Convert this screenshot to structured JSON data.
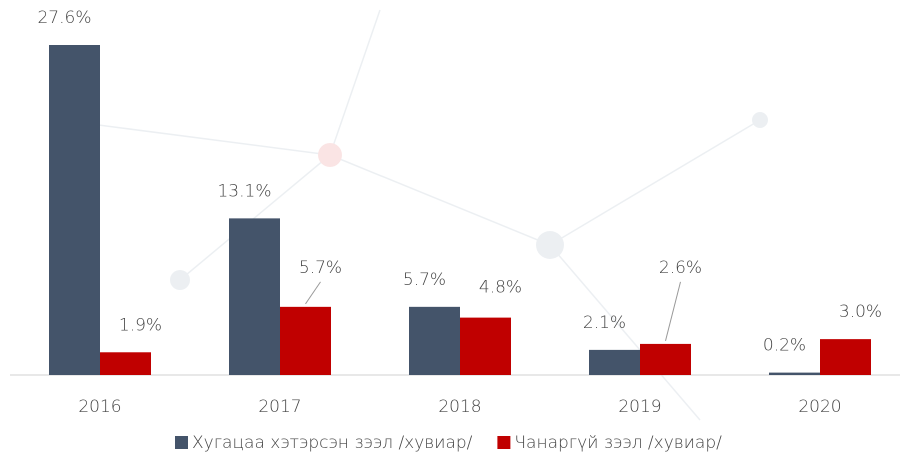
{
  "chart_data": {
    "type": "bar",
    "categories": [
      "2016",
      "2017",
      "2018",
      "2019",
      "2020"
    ],
    "series": [
      {
        "name": "Хугацаа хэтэрсэн зээл /хувиар/",
        "color": "#44546a",
        "values": [
          27.6,
          13.1,
          5.7,
          2.1,
          0.2
        ],
        "value_labels": [
          "27.6%",
          "13.1%",
          "5.7%",
          "2.1%",
          "0.2%"
        ]
      },
      {
        "name": "Чанаргүй зээл /хувиар/",
        "color": "#c00000",
        "values": [
          1.9,
          5.7,
          4.8,
          2.6,
          3.0
        ],
        "value_labels": [
          "1.9%",
          "5.7%",
          "4.8%",
          "2.6%",
          "3.0%"
        ]
      }
    ],
    "legend": "bottom"
  }
}
